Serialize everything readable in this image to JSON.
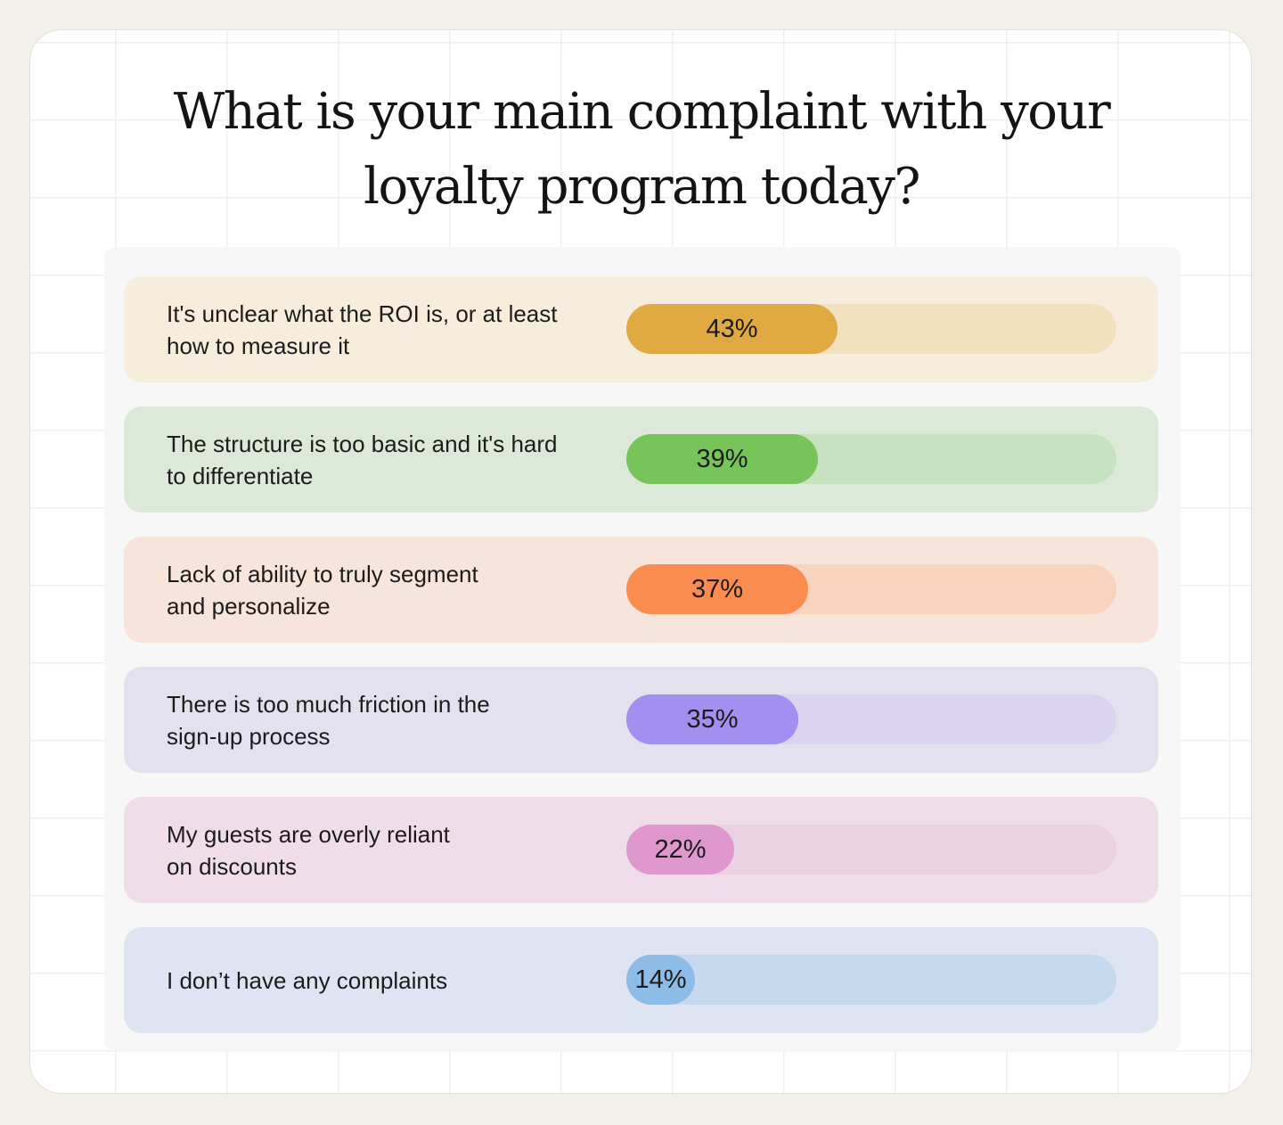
{
  "title_lines": [
    "What is your main complaint with your",
    "loyalty program today?"
  ],
  "chart_data": {
    "type": "bar",
    "orientation": "horizontal",
    "title": "What is your main complaint with your loyalty program today?",
    "xlim": [
      0,
      100
    ],
    "categories": [
      "It's unclear what the ROI is, or at least how to measure it",
      "The structure is too basic and it's hard to differentiate",
      "Lack of ability to truly segment and personalize",
      "There is too much friction in the sign-up process",
      "My guests are overly reliant on discounts",
      "I don’t have any complaints"
    ],
    "values": [
      43,
      39,
      37,
      35,
      22,
      14
    ],
    "value_labels": [
      "43%",
      "39%",
      "37%",
      "35%",
      "22%",
      "14%"
    ]
  },
  "rows": [
    {
      "label": "It's unclear what the ROI is, or at least\nhow to measure it",
      "pct_label": "43%",
      "value": 43,
      "row_color": "#f7eddc",
      "track_color": "#f2e1bf",
      "fill_color": "#e0a942"
    },
    {
      "label": "The structure is too basic and it's hard\nto differentiate",
      "pct_label": "39%",
      "value": 39,
      "row_color": "#dde9d8",
      "track_color": "#c7e2c0",
      "fill_color": "#76c45a"
    },
    {
      "label": "Lack of ability to truly segment\nand personalize",
      "pct_label": "37%",
      "value": 37,
      "row_color": "#f7e4da",
      "track_color": "#f8d3c0",
      "fill_color": "#fa8c50"
    },
    {
      "label": "There is too much friction in the\nsign-up process",
      "pct_label": "35%",
      "value": 35,
      "row_color": "#e4e1ef",
      "track_color": "#dad4f1",
      "fill_color": "#a28ff0"
    },
    {
      "label": "My guests are overly reliant\non discounts",
      "pct_label": "22%",
      "value": 22,
      "row_color": "#efdeea",
      "track_color": "#ebd2e3",
      "fill_color": "#de98cd"
    },
    {
      "label": "I don’t have any complaints",
      "pct_label": "14%",
      "value": 14,
      "row_color": "#dee4f1",
      "track_color": "#c7d9ee",
      "fill_color": "#8dbde6"
    }
  ]
}
